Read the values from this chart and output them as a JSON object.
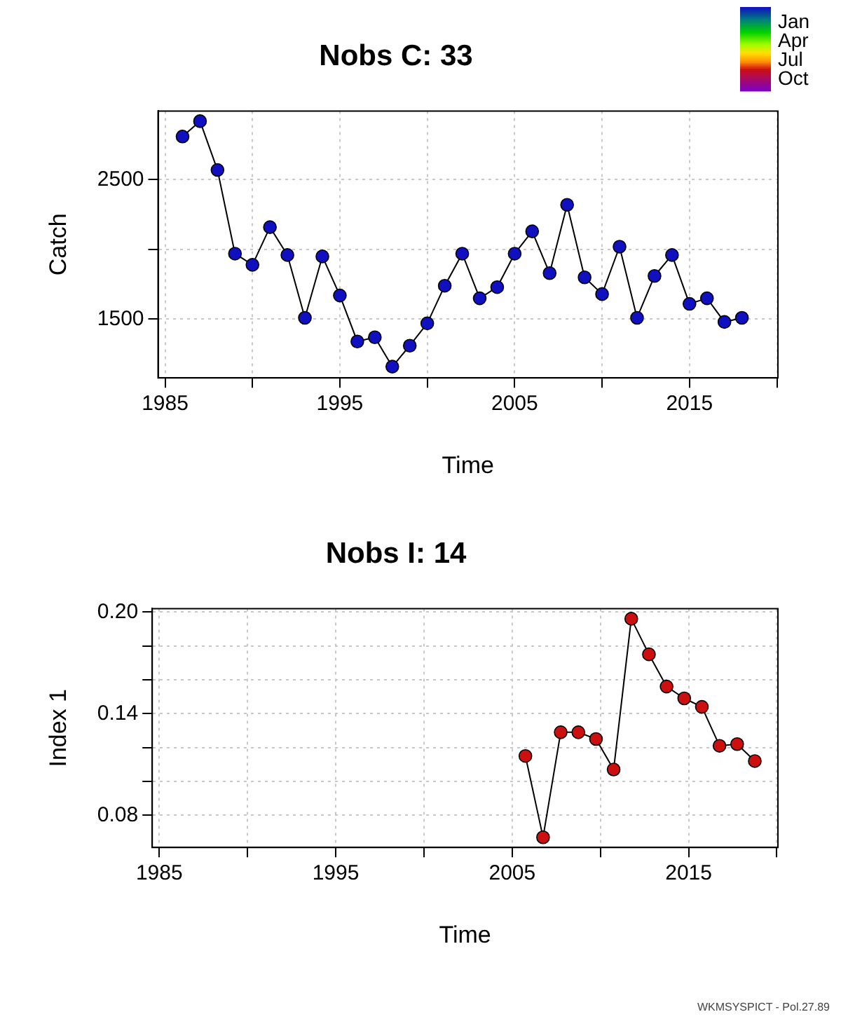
{
  "chart_data": [
    {
      "type": "line",
      "title": "Nobs C: 33",
      "xlabel": "Time",
      "ylabel": "Catch",
      "xlim": [
        1984.6,
        2020.06
      ],
      "ylim": [
        1079,
        2993
      ],
      "xticks": [
        1985,
        {
          "value": 1990,
          "label": null
        },
        1995,
        {
          "value": 2000,
          "label": null
        },
        2005,
        {
          "value": 2010,
          "label": null
        },
        2015,
        {
          "value": 2020,
          "label": null
        }
      ],
      "yticks": [
        1500,
        {
          "value": 2000,
          "label": null
        },
        2500
      ],
      "clim": [
        -0.2,
        0.9
      ],
      "cticks": [
        {
          "value": 0,
          "label": "Jan"
        },
        {
          "value": 0.25,
          "label": "Apr"
        },
        {
          "value": 0.5,
          "label": "Jul"
        },
        {
          "value": 0.75,
          "label": "Oct"
        }
      ],
      "grid": true,
      "legend": false,
      "marker": "circle",
      "line_style": "solid",
      "series": [
        {
          "color": "#1010c0",
          "x": [
            1986,
            1987,
            1988,
            1989,
            1990,
            1991,
            1992,
            1993,
            1994,
            1995,
            1996,
            1997,
            1998,
            1999,
            2000,
            2001,
            2002,
            2003,
            2004,
            2005,
            2006,
            2007,
            2008,
            2009,
            2010,
            2011,
            2012,
            2013,
            2014,
            2015,
            2016,
            2017,
            2018
          ],
          "values": [
            2810,
            2920,
            2570,
            1970,
            1890,
            2160,
            1960,
            1510,
            1950,
            1670,
            1340,
            1370,
            1160,
            1310,
            1470,
            1740,
            1970,
            1650,
            1730,
            1970,
            2130,
            1830,
            2320,
            1800,
            1680,
            2020,
            1510,
            1810,
            1960,
            1610,
            1650,
            1480,
            1510
          ]
        }
      ]
    },
    {
      "type": "line",
      "title": "Nobs I: 14",
      "xlabel": "Time",
      "ylabel": "Index 1",
      "xlim": [
        1984.6,
        2020.06
      ],
      "ylim": [
        0.061,
        0.202
      ],
      "xticks": [
        1985,
        {
          "value": 1990,
          "label": null
        },
        1995,
        {
          "value": 2000,
          "label": null
        },
        2005,
        {
          "value": 2010,
          "label": null
        },
        2015,
        {
          "value": 2020,
          "label": null
        }
      ],
      "yticks": [
        {
          "value": 0.08,
          "label": "0.08"
        },
        {
          "value": 0.1,
          "label": null
        },
        {
          "value": 0.12,
          "label": null
        },
        {
          "value": 0.14,
          "label": "0.14"
        },
        {
          "value": 0.16,
          "label": null
        },
        {
          "value": 0.18,
          "label": null
        },
        {
          "value": 0.2,
          "label": "0.20"
        }
      ],
      "grid": true,
      "legend": false,
      "marker": "circle",
      "line_style": "solid",
      "annotations": [
        "WKMSYSPICT - Pol.27.89"
      ],
      "series": [
        {
          "color": "#cc1010",
          "x": [
            2005.75,
            2006.75,
            2007.75,
            2008.75,
            2009.75,
            2010.75,
            2011.75,
            2012.75,
            2013.75,
            2014.75,
            2015.75,
            2016.75,
            2017.75,
            2018.75
          ],
          "values": [
            0.115,
            0.067,
            0.129,
            0.129,
            0.125,
            0.107,
            0.196,
            0.175,
            0.156,
            0.149,
            0.144,
            0.121,
            0.122,
            0.112
          ]
        }
      ]
    }
  ]
}
